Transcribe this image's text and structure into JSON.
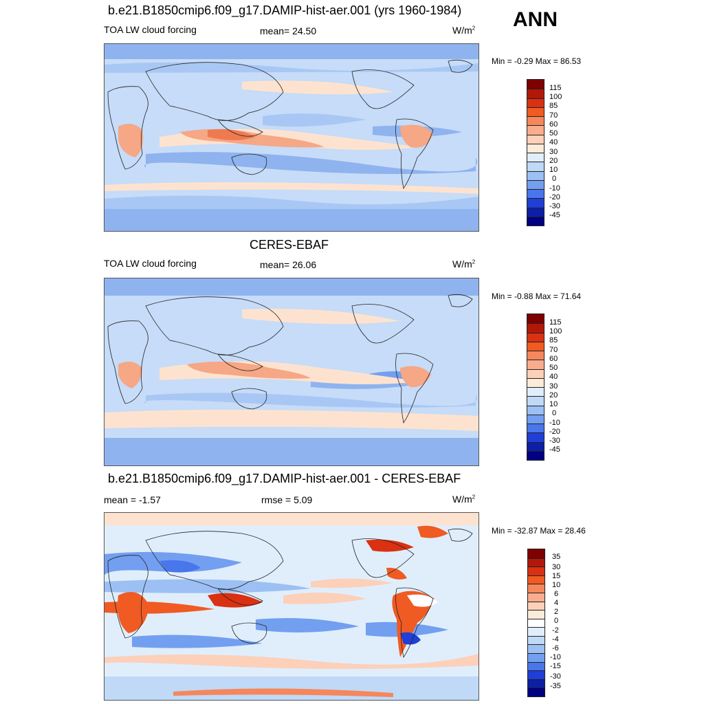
{
  "season": "ANN",
  "panels": [
    {
      "id": "model",
      "title": "b.e21.B1850cmip6.f09_g17.DAMIP-hist-aer.001 (yrs 1960-1984)",
      "left_label": "TOA LW cloud forcing",
      "center_label": "mean=  24.50",
      "units_base": "W/m",
      "units_exp": "2",
      "minmax": "Min =  -0.29 Max =  86.53",
      "colorbar": {
        "levels": [
          "115",
          "100",
          "85",
          "70",
          "60",
          "50",
          "40",
          "30",
          "20",
          "10",
          "0",
          "-10",
          "-20",
          "-30",
          "-45"
        ],
        "colors": [
          "#7f0000",
          "#b2180a",
          "#d93112",
          "#f05a23",
          "#f6865b",
          "#f9ad8d",
          "#fcd0b9",
          "#fdebd9",
          "#e0eefc",
          "#c0d9f7",
          "#9cc0f3",
          "#739ff0",
          "#4a76ec",
          "#1f3fd6",
          "#0c1fa7",
          "#000080"
        ]
      }
    },
    {
      "id": "obs",
      "title": "CERES-EBAF",
      "left_label": "TOA LW cloud forcing",
      "center_label": "mean=  26.06",
      "units_base": "W/m",
      "units_exp": "2",
      "minmax": "Min =  -0.88 Max =  71.64",
      "colorbar": {
        "levels": [
          "115",
          "100",
          "85",
          "70",
          "60",
          "50",
          "40",
          "30",
          "20",
          "10",
          "0",
          "-10",
          "-20",
          "-30",
          "-45"
        ],
        "colors": [
          "#7f0000",
          "#b2180a",
          "#d93112",
          "#f05a23",
          "#f6865b",
          "#f9ad8d",
          "#fcd0b9",
          "#fdebd9",
          "#e0eefc",
          "#c0d9f7",
          "#9cc0f3",
          "#739ff0",
          "#4a76ec",
          "#1f3fd6",
          "#0c1fa7",
          "#000080"
        ]
      }
    },
    {
      "id": "diff",
      "title": "b.e21.B1850cmip6.f09_g17.DAMIP-hist-aer.001 - CERES-EBAF",
      "left_label": "mean =  -1.57",
      "center_label": "rmse =   5.09",
      "units_base": "W/m",
      "units_exp": "2",
      "minmax": "Min = -32.87 Max =  28.46",
      "colorbar": {
        "levels": [
          "35",
          "30",
          "15",
          "10",
          "6",
          "4",
          "2",
          "0",
          "-2",
          "-4",
          "-6",
          "-10",
          "-15",
          "-30",
          "-35"
        ],
        "colors": [
          "#7f0000",
          "#b2180a",
          "#d93112",
          "#f05a23",
          "#f6865b",
          "#f9ad8d",
          "#fcd0b9",
          "#fdebd9",
          "#ffffff",
          "#e0eefc",
          "#c0d9f7",
          "#9cc0f3",
          "#739ff0",
          "#4a76ec",
          "#1f3fd6",
          "#0c1fa7",
          "#000080"
        ]
      }
    }
  ]
}
